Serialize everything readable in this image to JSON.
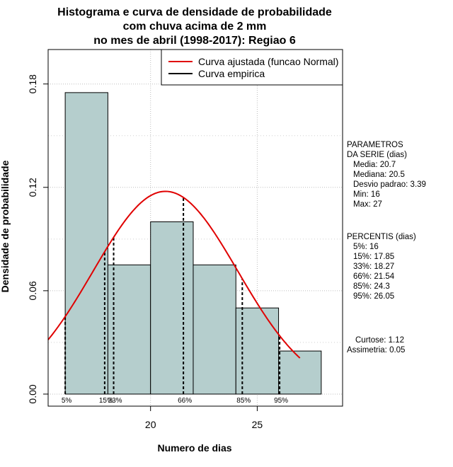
{
  "chart_data": {
    "type": "histogram",
    "title_lines": [
      "Histograma e curva de densidade de probabilidade",
      "com chuva acima de 2 mm",
      "no mes de abril (1998-2017): Regiao 6"
    ],
    "xlabel": "Numero de dias",
    "ylabel": "Densidade de probabilidade",
    "xlim": [
      15.2,
      29.0
    ],
    "ylim": [
      -0.007,
      0.2
    ],
    "x_ticks": [
      20,
      25
    ],
    "x_tick_labels": [
      "20",
      "25"
    ],
    "y_ticks": [
      0,
      0.06,
      0.12,
      0.18
    ],
    "y_tick_labels": [
      "0.00",
      "0.06",
      "0.12",
      "0.18"
    ],
    "bins": [
      {
        "from": 16,
        "to": 18,
        "density": 0.175
      },
      {
        "from": 18,
        "to": 20,
        "density": 0.075
      },
      {
        "from": 20,
        "to": 22,
        "density": 0.1
      },
      {
        "from": 22,
        "to": 24,
        "density": 0.075
      },
      {
        "from": 24,
        "to": 26,
        "density": 0.05
      },
      {
        "from": 26,
        "to": 28,
        "density": 0.025
      }
    ],
    "bar_color": "#b5cecd",
    "grid_x": [
      20,
      25
    ],
    "grid_y": [
      0,
      0.06,
      0.12,
      0.18
    ],
    "normal_curve": {
      "name": "Curva ajustada (funcao Normal)",
      "mean": 20.7,
      "sd": 3.39,
      "from": 15.2,
      "to": 27.0,
      "color": "#e00000"
    },
    "empirical_curve": {
      "name": "Curva empirica",
      "color": "#000000"
    },
    "percentile_lines": [
      {
        "label": "5%",
        "x": 16
      },
      {
        "label": "15%",
        "x": 17.85
      },
      {
        "label": "33%",
        "x": 18.27
      },
      {
        "label": "66%",
        "x": 21.54
      },
      {
        "label": "85%",
        "x": 24.3
      },
      {
        "label": "95%",
        "x": 26.05
      }
    ],
    "legend_position": "top-right"
  },
  "side_panel": {
    "parametros": [
      "PARAMETROS",
      "DA SERIE (dias)",
      "Media: 20.7",
      "Mediana: 20.5",
      "Desvio padrao: 3.39",
      "Min: 16",
      "Max: 27"
    ],
    "percentis": [
      "PERCENTIS (dias)",
      "5%: 16",
      "15%: 17.85",
      "33%: 18.27",
      "66%: 21.54",
      "85%: 24.3",
      "95%: 26.05"
    ],
    "curtose": "Curtose: 1.12",
    "assimetria": "Assimetria: 0.05"
  }
}
